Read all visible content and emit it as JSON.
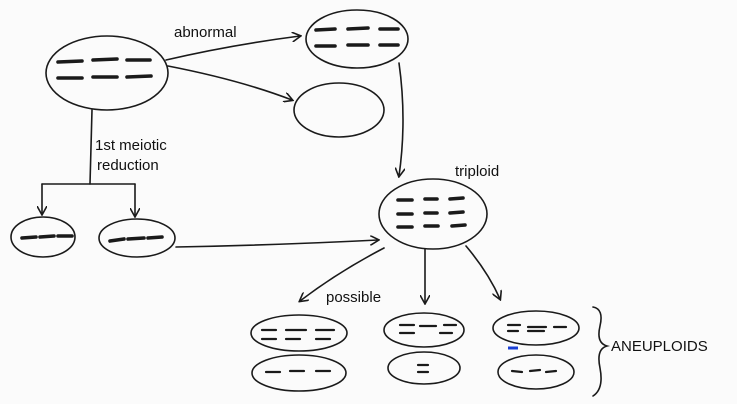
{
  "labels": {
    "abnormal": "abnormal",
    "meiotic_line1": "1st meiotic",
    "meiotic_line2": "reduction",
    "triploid": "triploid",
    "possible": "possible",
    "aneuploids": "ANEUPLOIDS"
  },
  "colors": {
    "ink": "#1a1a1a",
    "background": "#fbfbfb",
    "accent_mark": "#1a3fd6"
  }
}
